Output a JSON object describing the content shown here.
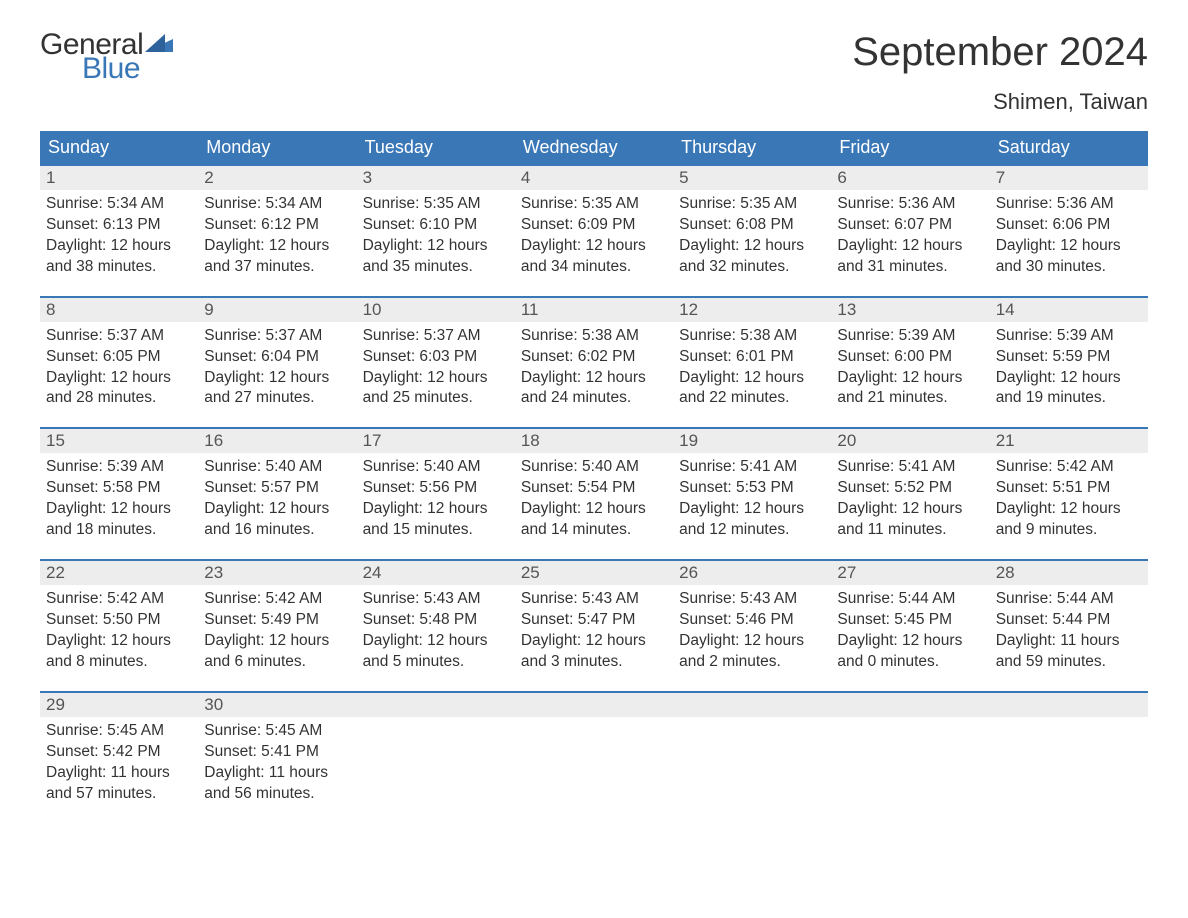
{
  "brand": {
    "word1": "General",
    "word2": "Blue"
  },
  "title": "September 2024",
  "location": "Shimen, Taiwan",
  "colors": {
    "header_bg": "#3a77b7",
    "header_text": "#ffffff",
    "daynum_bg": "#ededed",
    "daynum_text": "#555555",
    "body_text": "#333333",
    "week_border": "#3a77b7",
    "logo_accent": "#3a77b7"
  },
  "fonts": {
    "title_size_pt": 30,
    "location_size_pt": 16,
    "header_size_pt": 14,
    "body_size_pt": 11.5
  },
  "dayNames": [
    "Sunday",
    "Monday",
    "Tuesday",
    "Wednesday",
    "Thursday",
    "Friday",
    "Saturday"
  ],
  "weeks": [
    [
      {
        "n": "1",
        "sunrise": "Sunrise: 5:34 AM",
        "sunset": "Sunset: 6:13 PM",
        "d1": "Daylight: 12 hours",
        "d2": "and 38 minutes."
      },
      {
        "n": "2",
        "sunrise": "Sunrise: 5:34 AM",
        "sunset": "Sunset: 6:12 PM",
        "d1": "Daylight: 12 hours",
        "d2": "and 37 minutes."
      },
      {
        "n": "3",
        "sunrise": "Sunrise: 5:35 AM",
        "sunset": "Sunset: 6:10 PM",
        "d1": "Daylight: 12 hours",
        "d2": "and 35 minutes."
      },
      {
        "n": "4",
        "sunrise": "Sunrise: 5:35 AM",
        "sunset": "Sunset: 6:09 PM",
        "d1": "Daylight: 12 hours",
        "d2": "and 34 minutes."
      },
      {
        "n": "5",
        "sunrise": "Sunrise: 5:35 AM",
        "sunset": "Sunset: 6:08 PM",
        "d1": "Daylight: 12 hours",
        "d2": "and 32 minutes."
      },
      {
        "n": "6",
        "sunrise": "Sunrise: 5:36 AM",
        "sunset": "Sunset: 6:07 PM",
        "d1": "Daylight: 12 hours",
        "d2": "and 31 minutes."
      },
      {
        "n": "7",
        "sunrise": "Sunrise: 5:36 AM",
        "sunset": "Sunset: 6:06 PM",
        "d1": "Daylight: 12 hours",
        "d2": "and 30 minutes."
      }
    ],
    [
      {
        "n": "8",
        "sunrise": "Sunrise: 5:37 AM",
        "sunset": "Sunset: 6:05 PM",
        "d1": "Daylight: 12 hours",
        "d2": "and 28 minutes."
      },
      {
        "n": "9",
        "sunrise": "Sunrise: 5:37 AM",
        "sunset": "Sunset: 6:04 PM",
        "d1": "Daylight: 12 hours",
        "d2": "and 27 minutes."
      },
      {
        "n": "10",
        "sunrise": "Sunrise: 5:37 AM",
        "sunset": "Sunset: 6:03 PM",
        "d1": "Daylight: 12 hours",
        "d2": "and 25 minutes."
      },
      {
        "n": "11",
        "sunrise": "Sunrise: 5:38 AM",
        "sunset": "Sunset: 6:02 PM",
        "d1": "Daylight: 12 hours",
        "d2": "and 24 minutes."
      },
      {
        "n": "12",
        "sunrise": "Sunrise: 5:38 AM",
        "sunset": "Sunset: 6:01 PM",
        "d1": "Daylight: 12 hours",
        "d2": "and 22 minutes."
      },
      {
        "n": "13",
        "sunrise": "Sunrise: 5:39 AM",
        "sunset": "Sunset: 6:00 PM",
        "d1": "Daylight: 12 hours",
        "d2": "and 21 minutes."
      },
      {
        "n": "14",
        "sunrise": "Sunrise: 5:39 AM",
        "sunset": "Sunset: 5:59 PM",
        "d1": "Daylight: 12 hours",
        "d2": "and 19 minutes."
      }
    ],
    [
      {
        "n": "15",
        "sunrise": "Sunrise: 5:39 AM",
        "sunset": "Sunset: 5:58 PM",
        "d1": "Daylight: 12 hours",
        "d2": "and 18 minutes."
      },
      {
        "n": "16",
        "sunrise": "Sunrise: 5:40 AM",
        "sunset": "Sunset: 5:57 PM",
        "d1": "Daylight: 12 hours",
        "d2": "and 16 minutes."
      },
      {
        "n": "17",
        "sunrise": "Sunrise: 5:40 AM",
        "sunset": "Sunset: 5:56 PM",
        "d1": "Daylight: 12 hours",
        "d2": "and 15 minutes."
      },
      {
        "n": "18",
        "sunrise": "Sunrise: 5:40 AM",
        "sunset": "Sunset: 5:54 PM",
        "d1": "Daylight: 12 hours",
        "d2": "and 14 minutes."
      },
      {
        "n": "19",
        "sunrise": "Sunrise: 5:41 AM",
        "sunset": "Sunset: 5:53 PM",
        "d1": "Daylight: 12 hours",
        "d2": "and 12 minutes."
      },
      {
        "n": "20",
        "sunrise": "Sunrise: 5:41 AM",
        "sunset": "Sunset: 5:52 PM",
        "d1": "Daylight: 12 hours",
        "d2": "and 11 minutes."
      },
      {
        "n": "21",
        "sunrise": "Sunrise: 5:42 AM",
        "sunset": "Sunset: 5:51 PM",
        "d1": "Daylight: 12 hours",
        "d2": "and 9 minutes."
      }
    ],
    [
      {
        "n": "22",
        "sunrise": "Sunrise: 5:42 AM",
        "sunset": "Sunset: 5:50 PM",
        "d1": "Daylight: 12 hours",
        "d2": "and 8 minutes."
      },
      {
        "n": "23",
        "sunrise": "Sunrise: 5:42 AM",
        "sunset": "Sunset: 5:49 PM",
        "d1": "Daylight: 12 hours",
        "d2": "and 6 minutes."
      },
      {
        "n": "24",
        "sunrise": "Sunrise: 5:43 AM",
        "sunset": "Sunset: 5:48 PM",
        "d1": "Daylight: 12 hours",
        "d2": "and 5 minutes."
      },
      {
        "n": "25",
        "sunrise": "Sunrise: 5:43 AM",
        "sunset": "Sunset: 5:47 PM",
        "d1": "Daylight: 12 hours",
        "d2": "and 3 minutes."
      },
      {
        "n": "26",
        "sunrise": "Sunrise: 5:43 AM",
        "sunset": "Sunset: 5:46 PM",
        "d1": "Daylight: 12 hours",
        "d2": "and 2 minutes."
      },
      {
        "n": "27",
        "sunrise": "Sunrise: 5:44 AM",
        "sunset": "Sunset: 5:45 PM",
        "d1": "Daylight: 12 hours",
        "d2": "and 0 minutes."
      },
      {
        "n": "28",
        "sunrise": "Sunrise: 5:44 AM",
        "sunset": "Sunset: 5:44 PM",
        "d1": "Daylight: 11 hours",
        "d2": "and 59 minutes."
      }
    ],
    [
      {
        "n": "29",
        "sunrise": "Sunrise: 5:45 AM",
        "sunset": "Sunset: 5:42 PM",
        "d1": "Daylight: 11 hours",
        "d2": "and 57 minutes."
      },
      {
        "n": "30",
        "sunrise": "Sunrise: 5:45 AM",
        "sunset": "Sunset: 5:41 PM",
        "d1": "Daylight: 11 hours",
        "d2": "and 56 minutes."
      },
      null,
      null,
      null,
      null,
      null
    ]
  ]
}
